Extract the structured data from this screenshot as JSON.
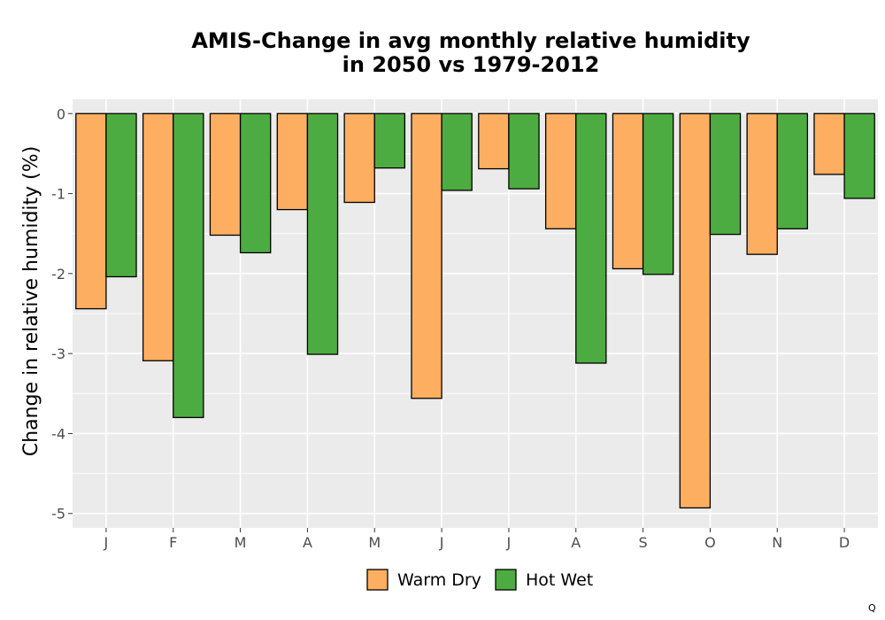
{
  "chart_data": {
    "type": "bar",
    "title_lines": [
      "AMIS-Change in avg monthly relative humidity",
      "in 2050 vs 1979-2012"
    ],
    "xlabel": "",
    "ylabel": "Change in relative humidity (%)",
    "categories": [
      "J",
      "F",
      "M",
      "A",
      "M",
      "J",
      "J",
      "A",
      "S",
      "O",
      "N",
      "D"
    ],
    "series": [
      {
        "name": "Warm Dry",
        "color": "#FDAE61",
        "values": [
          -2.44,
          -3.09,
          -1.52,
          -1.2,
          -1.11,
          -3.56,
          -0.69,
          -1.44,
          -1.94,
          -4.93,
          -1.76,
          -0.76
        ]
      },
      {
        "name": "Hot Wet",
        "color": "#4DAC41",
        "values": [
          -2.04,
          -3.8,
          -1.74,
          -3.01,
          -0.68,
          -0.96,
          -0.94,
          -3.12,
          -2.01,
          -1.51,
          -1.44,
          -1.06
        ]
      }
    ],
    "ylim": [
      -5.18,
      0.18
    ],
    "yticks": [
      0,
      -1,
      -2,
      -3,
      -4,
      -5
    ],
    "ytick_labels": [
      "0",
      "-1",
      "-2",
      "-3",
      "-4",
      "-5"
    ],
    "grid": true,
    "legend_position": "bottom",
    "panel_background": "#EBEBEB",
    "grid_color": "#FFFFFF",
    "bar_outline": "#000000"
  },
  "corner_mark": "Q"
}
